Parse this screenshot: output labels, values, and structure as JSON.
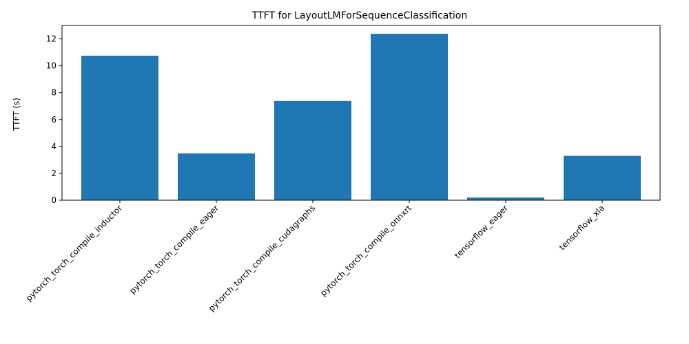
{
  "chart_data": {
    "type": "bar",
    "title": "TTFT for LayoutLMForSequenceClassification",
    "xlabel": "",
    "ylabel": "TTFT (s)",
    "categories": [
      "pytorch_torch_compile_inductor",
      "pytorch_torch_compile_eager",
      "pytorch_torch_compile_cudagraphs",
      "pytorch_torch_compile_onnxrt",
      "tensorflow_eager",
      "tensorflow_xla"
    ],
    "values": [
      10.75,
      3.48,
      7.38,
      12.38,
      0.2,
      3.3
    ],
    "ylim": [
      0,
      13
    ],
    "yticks": [
      0,
      2,
      4,
      6,
      8,
      10,
      12
    ],
    "grid": false,
    "bar_color": "#1f77b4"
  }
}
